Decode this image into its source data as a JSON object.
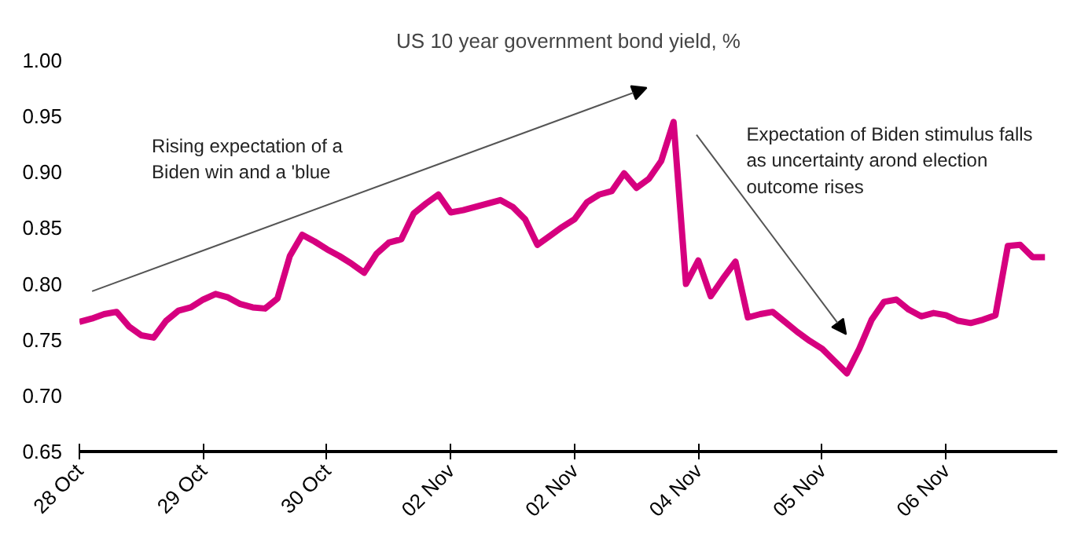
{
  "chart_data": {
    "type": "line",
    "title": "US 10 year government bond yield, %",
    "categories": [
      "28 Oct",
      null,
      null,
      null,
      null,
      null,
      null,
      null,
      null,
      null,
      "29 Oct",
      null,
      null,
      null,
      null,
      null,
      null,
      null,
      null,
      null,
      "30 Oct",
      null,
      null,
      null,
      null,
      null,
      null,
      null,
      null,
      null,
      "02 Nov",
      null,
      null,
      null,
      null,
      null,
      null,
      null,
      null,
      null,
      "02 Nov",
      null,
      null,
      null,
      null,
      null,
      null,
      null,
      null,
      null,
      "04 Nov",
      null,
      null,
      null,
      null,
      null,
      null,
      null,
      null,
      null,
      "05 Nov",
      null,
      null,
      null,
      null,
      null,
      null,
      null,
      null,
      null,
      "06 Nov",
      null,
      null,
      null,
      null,
      null,
      null,
      null,
      null
    ],
    "series": [
      {
        "color": "#d6007f",
        "values": [
          0.766,
          0.769,
          0.773,
          0.775,
          0.762,
          0.754,
          0.752,
          0.767,
          0.776,
          0.779,
          0.786,
          0.791,
          0.788,
          0.782,
          0.779,
          0.778,
          0.787,
          0.825,
          0.844,
          0.838,
          0.831,
          0.825,
          0.818,
          0.81,
          0.827,
          0.837,
          0.84,
          0.863,
          0.872,
          0.88,
          0.864,
          0.866,
          0.869,
          0.872,
          0.875,
          0.869,
          0.858,
          0.835,
          0.843,
          0.851,
          0.858,
          0.873,
          0.88,
          0.883,
          0.899,
          0.886,
          0.894,
          0.91,
          0.945,
          0.8,
          0.821,
          0.789,
          0.805,
          0.82,
          0.77,
          0.773,
          0.775,
          0.766,
          0.757,
          0.749,
          0.742,
          0.731,
          0.72,
          0.742,
          0.768,
          0.784,
          0.786,
          0.777,
          0.771,
          0.774,
          0.772,
          0.767,
          0.765,
          0.768,
          0.772,
          0.834,
          0.835,
          0.824,
          0.824
        ]
      }
    ],
    "ylim": [
      0.65,
      1.0
    ],
    "yticks": [
      {
        "value": 0.65,
        "label": "0.65"
      },
      {
        "value": 0.7,
        "label": "0.70"
      },
      {
        "value": 0.75,
        "label": "0.75"
      },
      {
        "value": 0.8,
        "label": "0.80"
      },
      {
        "value": 0.85,
        "label": "0.85"
      },
      {
        "value": 0.9,
        "label": "0.90"
      },
      {
        "value": 0.95,
        "label": "0.95"
      },
      {
        "value": 1.0,
        "label": "1.00"
      }
    ],
    "annotations": [
      "Rising expectation of a\nBiden win and a 'blue",
      "Expectation of Biden stimulus falls\nas uncertainty arond election\noutcome rises"
    ],
    "line_style": "solid"
  }
}
